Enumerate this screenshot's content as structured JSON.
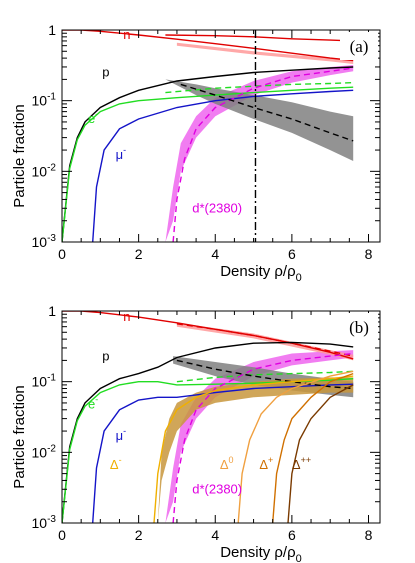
{
  "chart_data": [
    {
      "type": "line",
      "panel_label": "(a)",
      "xlabel": "Density ρ/ρ",
      "xlabel_sub": "0",
      "ylabel": "Particle fraction",
      "xlim": [
        0,
        8.3
      ],
      "ylim": [
        0.001,
        1
      ],
      "yscale": "log",
      "x_ticks": [
        "0",
        "2",
        "4",
        "6",
        "8"
      ],
      "y_ticks": [
        {
          "base": "10",
          "exp": "-3"
        },
        {
          "base": "10",
          "exp": "-2"
        },
        {
          "base": "10",
          "exp": "-1"
        },
        {
          "base": "1",
          "exp": ""
        }
      ],
      "vline_x": 5.05,
      "series": [
        {
          "name": "n",
          "color": "#e00000",
          "style": "solid",
          "x": [
            0,
            0.5,
            1,
            2,
            3,
            4,
            5,
            6,
            7,
            7.6
          ],
          "y": [
            1,
            1,
            0.96,
            0.85,
            0.74,
            0.64,
            0.55,
            0.47,
            0.4,
            0.37
          ]
        },
        {
          "name": "",
          "color": "#e00000",
          "style": "solid",
          "x": [
            2.7,
            4,
            5,
            6,
            7,
            7.6
          ],
          "y": [
            0.85,
            0.83,
            0.8,
            0.75,
            0.72,
            0.7
          ]
        },
        {
          "name": "p",
          "color": "#000000",
          "style": "solid",
          "x": [
            0,
            0.2,
            0.4,
            0.6,
            1,
            1.5,
            2,
            3,
            4,
            5,
            6,
            7,
            7.6
          ],
          "y": [
            0.001,
            0.012,
            0.03,
            0.05,
            0.08,
            0.11,
            0.14,
            0.19,
            0.22,
            0.25,
            0.27,
            0.29,
            0.3
          ]
        },
        {
          "name": "e⁻",
          "color": "#22dd22",
          "style": "solid",
          "x": [
            0,
            0.2,
            0.4,
            0.6,
            1,
            1.5,
            2,
            3,
            4,
            5,
            6,
            7,
            7.6
          ],
          "y": [
            0.001,
            0.011,
            0.028,
            0.045,
            0.07,
            0.09,
            0.1,
            0.11,
            0.12,
            0.13,
            0.14,
            0.15,
            0.155
          ]
        },
        {
          "name": "",
          "color": "#22dd22",
          "style": "dashed",
          "x": [
            2.7,
            4,
            5,
            6,
            7,
            7.6
          ],
          "y": [
            0.13,
            0.15,
            0.16,
            0.17,
            0.175,
            0.18
          ]
        },
        {
          "name": "μ⁻",
          "color": "#1414c8",
          "style": "solid",
          "x": [
            0.8,
            0.9,
            1.1,
            1.5,
            2,
            3,
            4,
            5,
            6,
            7,
            7.6
          ],
          "y": [
            0.001,
            0.006,
            0.02,
            0.04,
            0.055,
            0.08,
            0.1,
            0.115,
            0.125,
            0.135,
            0.14
          ]
        },
        {
          "name": "d*(2380)",
          "color": "#e000e0",
          "style": "dashed",
          "x": [
            2.9,
            3,
            3.2,
            3.5,
            4,
            5,
            6,
            7,
            7.6
          ],
          "y": [
            0.001,
            0.004,
            0.015,
            0.04,
            0.08,
            0.15,
            0.22,
            0.26,
            0.29
          ]
        },
        {
          "name": "",
          "color": "#000000",
          "style": "dashed",
          "x": [
            3.1,
            4,
            5,
            6,
            7,
            7.6
          ],
          "y": [
            0.17,
            0.12,
            0.08,
            0.055,
            0.035,
            0.027
          ]
        }
      ],
      "bands": [
        {
          "name": "",
          "color": "#ee66ee",
          "x": [
            2.7,
            2.9,
            3.1,
            3.5,
            4,
            5,
            6,
            7,
            7.6
          ],
          "low": [
            0.001,
            0.002,
            0.01,
            0.03,
            0.06,
            0.12,
            0.18,
            0.23,
            0.26
          ],
          "high": [
            0.001,
            0.006,
            0.025,
            0.06,
            0.11,
            0.19,
            0.26,
            0.3,
            0.32
          ]
        },
        {
          "name": "",
          "color": "#808080",
          "x": [
            2.7,
            3.5,
            4,
            5,
            6,
            7,
            7.6
          ],
          "low": [
            0.2,
            0.12,
            0.09,
            0.055,
            0.035,
            0.02,
            0.014
          ],
          "high": [
            0.2,
            0.17,
            0.15,
            0.12,
            0.095,
            0.07,
            0.06
          ]
        },
        {
          "name": "",
          "color": "#ff9999",
          "x": [
            3,
            5,
            7,
            7.6
          ],
          "low": [
            0.6,
            0.45,
            0.36,
            0.33
          ],
          "high": [
            0.66,
            0.5,
            0.4,
            0.37
          ]
        }
      ],
      "annotations": [
        {
          "text": "n",
          "color": "#e00000",
          "x": 1.6,
          "y": 0.75
        },
        {
          "text": "p",
          "color": "#000000",
          "x": 1.05,
          "y": 0.22
        },
        {
          "text": "e",
          "sup": "-",
          "color": "#22dd22",
          "x": 0.68,
          "y": 0.048
        },
        {
          "text": "μ",
          "sup": "-",
          "color": "#1414c8",
          "x": 1.4,
          "y": 0.015
        },
        {
          "text": "d*(2380)",
          "color": "#e000e0",
          "x": 3.4,
          "y": 0.0026
        }
      ]
    },
    {
      "type": "line",
      "panel_label": "(b)",
      "xlabel": "Density ρ/ρ",
      "xlabel_sub": "0",
      "ylabel": "Particle fraction",
      "xlim": [
        0,
        8.3
      ],
      "ylim": [
        0.001,
        1
      ],
      "yscale": "log",
      "x_ticks": [
        "0",
        "2",
        "4",
        "6",
        "8"
      ],
      "y_ticks": [
        {
          "base": "10",
          "exp": "-3"
        },
        {
          "base": "10",
          "exp": "-2"
        },
        {
          "base": "10",
          "exp": "-1"
        },
        {
          "base": "1",
          "exp": ""
        }
      ],
      "series": [
        {
          "name": "n",
          "color": "#e00000",
          "style": "solid",
          "x": [
            0,
            0.5,
            1,
            2,
            3,
            4,
            5,
            6,
            7,
            7.6
          ],
          "y": [
            1,
            1,
            0.95,
            0.82,
            0.68,
            0.55,
            0.45,
            0.35,
            0.26,
            0.21
          ]
        },
        {
          "name": "",
          "color": "#e00000",
          "style": "dashed",
          "x": [
            3,
            4,
            5,
            6,
            7,
            7.6
          ],
          "y": [
            0.66,
            0.55,
            0.45,
            0.35,
            0.27,
            0.23
          ]
        },
        {
          "name": "p",
          "color": "#000000",
          "style": "solid",
          "x": [
            0,
            0.2,
            0.4,
            0.6,
            1,
            1.5,
            2,
            2.5,
            3,
            4,
            5,
            6,
            7,
            7.6
          ],
          "y": [
            0.001,
            0.012,
            0.03,
            0.05,
            0.08,
            0.11,
            0.13,
            0.16,
            0.22,
            0.3,
            0.35,
            0.36,
            0.34,
            0.31
          ]
        },
        {
          "name": "e⁻",
          "color": "#22dd22",
          "style": "solid",
          "x": [
            0,
            0.2,
            0.4,
            0.6,
            1,
            1.5,
            2,
            2.5,
            3,
            4,
            5,
            6,
            7,
            7.6
          ],
          "y": [
            0.001,
            0.011,
            0.028,
            0.045,
            0.07,
            0.09,
            0.1,
            0.1,
            0.09,
            0.092,
            0.095,
            0.1,
            0.105,
            0.11
          ]
        },
        {
          "name": "",
          "color": "#22dd22",
          "style": "dashed",
          "x": [
            3,
            4,
            5,
            6,
            7,
            7.6
          ],
          "y": [
            0.1,
            0.115,
            0.125,
            0.13,
            0.135,
            0.14
          ]
        },
        {
          "name": "μ⁻",
          "color": "#1414c8",
          "style": "solid",
          "x": [
            0.8,
            0.9,
            1.1,
            1.5,
            2,
            2.5,
            3,
            4,
            5,
            6,
            7,
            7.6
          ],
          "y": [
            0.001,
            0.006,
            0.02,
            0.04,
            0.055,
            0.06,
            0.06,
            0.07,
            0.08,
            0.085,
            0.09,
            0.092
          ]
        },
        {
          "name": "d*(2380)",
          "color": "#e000e0",
          "style": "dashed",
          "x": [
            2.9,
            3,
            3.2,
            3.5,
            4,
            5,
            6,
            7,
            7.6
          ],
          "y": [
            0.001,
            0.004,
            0.015,
            0.04,
            0.08,
            0.15,
            0.2,
            0.23,
            0.25
          ]
        },
        {
          "name": "",
          "color": "#000000",
          "style": "dashed",
          "x": [
            3,
            4,
            5,
            6,
            7,
            7.6
          ],
          "y": [
            0.2,
            0.15,
            0.12,
            0.1,
            0.085,
            0.08
          ]
        },
        {
          "name": "Δ⁻",
          "color": "#f0b000",
          "style": "solid",
          "x": [
            2.4,
            2.5,
            2.7,
            3,
            3.5,
            4,
            5,
            6,
            7,
            7.6
          ],
          "y": [
            0.001,
            0.005,
            0.02,
            0.04,
            0.06,
            0.075,
            0.09,
            0.1,
            0.11,
            0.12
          ]
        },
        {
          "name": "Δ⁰",
          "color": "#f0a040",
          "style": "solid",
          "x": [
            4.6,
            4.7,
            4.9,
            5.2,
            5.6,
            6,
            7,
            7.6
          ],
          "y": [
            0.001,
            0.005,
            0.015,
            0.035,
            0.06,
            0.08,
            0.12,
            0.14
          ]
        },
        {
          "name": "Δ⁺",
          "color": "#d07000",
          "style": "solid",
          "x": [
            5.5,
            5.6,
            5.8,
            6,
            6.5,
            7,
            7.6
          ],
          "y": [
            0.001,
            0.005,
            0.015,
            0.03,
            0.06,
            0.1,
            0.13
          ]
        },
        {
          "name": "Δ⁺⁺",
          "color": "#7a3a00",
          "style": "solid",
          "x": [
            5.9,
            6,
            6.2,
            6.5,
            7,
            7.6
          ],
          "y": [
            0.001,
            0.005,
            0.015,
            0.03,
            0.06,
            0.09
          ]
        }
      ],
      "bands": [
        {
          "name": "",
          "color": "#ee66ee",
          "x": [
            2.7,
            2.9,
            3.1,
            3.5,
            4,
            5,
            6,
            7,
            7.6
          ],
          "low": [
            0.001,
            0.002,
            0.01,
            0.03,
            0.06,
            0.12,
            0.17,
            0.2,
            0.22
          ],
          "high": [
            0.001,
            0.006,
            0.025,
            0.06,
            0.11,
            0.19,
            0.25,
            0.27,
            0.28
          ]
        },
        {
          "name": "",
          "color": "#808080",
          "x": [
            2.9,
            4,
            5,
            6,
            7,
            7.6
          ],
          "low": [
            0.18,
            0.12,
            0.09,
            0.075,
            0.065,
            0.06
          ],
          "high": [
            0.23,
            0.19,
            0.16,
            0.13,
            0.11,
            0.1
          ]
        },
        {
          "name": "",
          "color": "#c8963c",
          "x": [
            2.5,
            2.6,
            2.8,
            3,
            3.5,
            4,
            5,
            6,
            7,
            7.6
          ],
          "low": [
            0.001,
            0.004,
            0.01,
            0.02,
            0.04,
            0.05,
            0.06,
            0.065,
            0.07,
            0.07
          ],
          "high": [
            0.001,
            0.01,
            0.03,
            0.05,
            0.07,
            0.085,
            0.1,
            0.11,
            0.115,
            0.115
          ]
        },
        {
          "name": "",
          "color": "#ff9999",
          "x": [
            3,
            5,
            7,
            7.6
          ],
          "low": [
            0.6,
            0.41,
            0.24,
            0.2
          ],
          "high": [
            0.68,
            0.48,
            0.28,
            0.24
          ]
        }
      ],
      "annotations": [
        {
          "text": "n",
          "color": "#e00000",
          "x": 1.6,
          "y": 0.72
        },
        {
          "text": "p",
          "color": "#000000",
          "x": 1.05,
          "y": 0.2
        },
        {
          "text": "e",
          "sup": "-",
          "color": "#22dd22",
          "x": 0.68,
          "y": 0.042
        },
        {
          "text": "μ",
          "sup": "-",
          "color": "#1414c8",
          "x": 1.4,
          "y": 0.015
        },
        {
          "text": "Δ",
          "sup": "-",
          "color": "#f0b000",
          "x": 1.25,
          "y": 0.0058
        },
        {
          "text": "d*(2380)",
          "color": "#e000e0",
          "x": 3.4,
          "y": 0.0026
        },
        {
          "text": "Δ",
          "sup": "0",
          "color": "#f0a040",
          "x": 4.12,
          "y": 0.0058
        },
        {
          "text": "Δ",
          "sup": "+",
          "color": "#d07000",
          "x": 5.15,
          "y": 0.0058
        },
        {
          "text": "Δ",
          "sup": "++",
          "color": "#7a3a00",
          "x": 6.0,
          "y": 0.0058
        }
      ]
    }
  ]
}
